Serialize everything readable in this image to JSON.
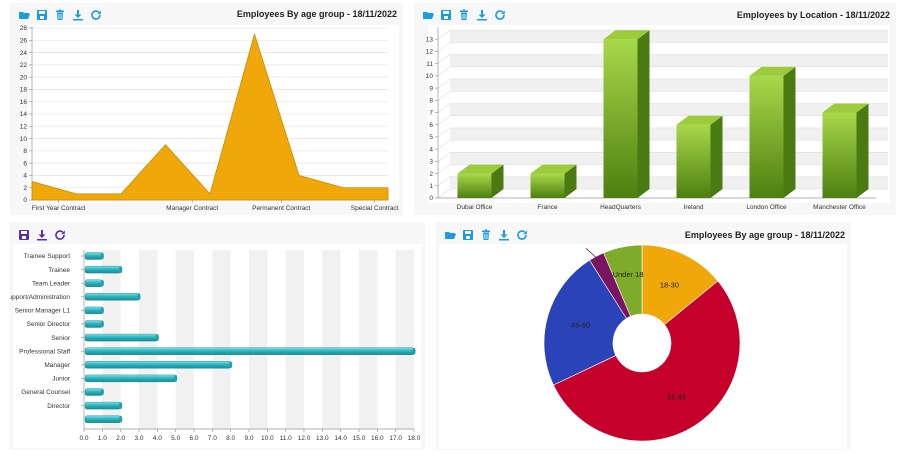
{
  "panels": {
    "age_line": {
      "title": "Employees By age group - 18/11/2022",
      "toolbar": [
        "folder-open-icon",
        "save-icon",
        "delete-icon",
        "download-icon",
        "refresh-icon"
      ]
    },
    "location_bar": {
      "title": "Employees by Location - 18/11/2022",
      "toolbar": [
        "folder-open-icon",
        "save-icon",
        "delete-icon",
        "download-icon",
        "refresh-icon"
      ]
    },
    "role_bar": {
      "title": "",
      "toolbar": [
        "save-icon",
        "download-icon",
        "refresh-icon"
      ]
    },
    "age_pie": {
      "title": "Employees By age group - 18/11/2022",
      "toolbar": [
        "folder-open-icon",
        "save-icon",
        "delete-icon",
        "download-icon",
        "refresh-icon"
      ]
    }
  },
  "colors": {
    "toolbar_blue": "#1a9ce0",
    "toolbar_purple": "#5a2ea6",
    "area_fill": "#f0a70a",
    "area_stroke": "#c98b00",
    "bar_green_light": "#a8d84a",
    "bar_green_dark": "#4e7f10",
    "bar_teal": "#2bb5bf",
    "pie_orange": "#f0a70a",
    "pie_red": "#c5002a",
    "pie_blue": "#2a43b8",
    "pie_purple": "#7a1460",
    "pie_green": "#7fab2c"
  },
  "chart_data": [
    {
      "type": "area",
      "title": "Employees By age group - 18/11/2022",
      "categories": [
        "First Year Contract",
        "",
        "",
        "Manager Contract",
        "",
        "Permanent Contract",
        "",
        "Special Contract",
        ""
      ],
      "values": [
        3,
        1,
        1,
        9,
        1,
        27,
        4,
        2,
        2
      ],
      "ylim": [
        0,
        28
      ],
      "yticks": [
        0,
        2,
        4,
        6,
        8,
        10,
        12,
        14,
        16,
        18,
        20,
        22,
        24,
        26,
        28
      ],
      "grid": true
    },
    {
      "type": "bar",
      "title": "Employees by Location - 18/11/2022",
      "categories": [
        "Dubai Office",
        "France",
        "HeadQuarters",
        "Ireland",
        "London Office",
        "Manchester Office"
      ],
      "values": [
        2,
        2,
        13,
        6,
        10,
        7
      ],
      "ylim": [
        0,
        14
      ],
      "yticks": [
        0,
        1,
        2,
        3,
        4,
        5,
        6,
        7,
        8,
        9,
        10,
        11,
        12,
        13
      ],
      "grid": true
    },
    {
      "type": "bar",
      "orientation": "horizontal",
      "categories": [
        "Trainee Support",
        "Trainee",
        "Team Leader",
        "Support/Administration",
        "Senior Manager L1",
        "Senior Director",
        "Senior",
        "Professional Staff",
        "Manager",
        "Junior",
        "General Counsel",
        "Director",
        ""
      ],
      "values": [
        1,
        2,
        1,
        3,
        1,
        1,
        4,
        18,
        8,
        5,
        1,
        2,
        2
      ],
      "xlim": [
        0,
        18
      ],
      "xticks": [
        "0.0",
        "1.0",
        "2.0",
        "3.0",
        "4.0",
        "5.0",
        "6.0",
        "7.0",
        "8.0",
        "9.0",
        "10.0",
        "11.0",
        "12.0",
        "13.0",
        "14.0",
        "15.0",
        "16.0",
        "17.0",
        "18.0"
      ],
      "grid": true
    },
    {
      "type": "pie",
      "title": "Employees By age group - 18/11/2022",
      "labels": [
        "18-30",
        "31-45",
        "46-60",
        "",
        "Under 18"
      ],
      "values": [
        5.5,
        21,
        9,
        1,
        2.5
      ]
    }
  ]
}
